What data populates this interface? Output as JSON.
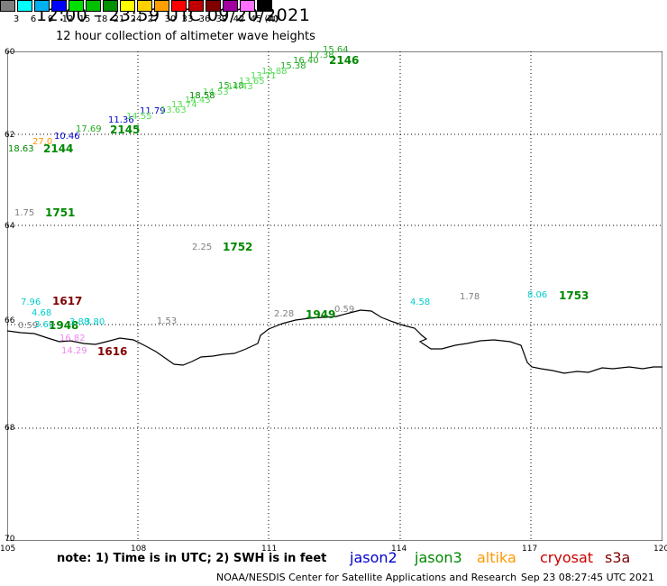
{
  "title": "12:00 – 23:59 UTC 09/20/2021",
  "subtitle": "12 hour collection of altimeter wave heights",
  "legend": {
    "unit": "(ft)",
    "colors": [
      "#7f7f7f",
      "#00ffff",
      "#00b0f0",
      "#0000ff",
      "#00e000",
      "#00c000",
      "#009000",
      "#ffff00",
      "#ffd000",
      "#ffa000",
      "#ff0000",
      "#c00000",
      "#800000",
      "#a000a0",
      "#ff70ff",
      "#000000"
    ],
    "labels": [
      "3",
      "6",
      "9",
      "12",
      "15",
      "18",
      "21",
      "24",
      "27",
      "30",
      "33",
      "36",
      "39",
      "42",
      "45",
      "70"
    ]
  },
  "axes": {
    "lat_labels": [
      "60",
      "62",
      "64",
      "66",
      "68",
      "70"
    ],
    "lon_labels": [
      "105",
      "108",
      "111",
      "114",
      "117",
      "120"
    ]
  },
  "measurements": [
    {
      "text": "15.64",
      "color": "#22a822"
    },
    {
      "text": "17.38",
      "color": "#22a822"
    },
    {
      "text": "16.40",
      "color": "#22a822"
    },
    {
      "text": "2146",
      "color": "#008800",
      "bold": true
    },
    {
      "text": "15.38",
      "color": "#22a822"
    },
    {
      "text": "13.88",
      "color": "#55dd55"
    },
    {
      "text": "13.71",
      "color": "#55dd55"
    },
    {
      "text": "13.65",
      "color": "#55dd55"
    },
    {
      "text": "14.43",
      "color": "#55dd55"
    },
    {
      "text": "15.18",
      "color": "#22a822"
    },
    {
      "text": "14.53",
      "color": "#55dd55"
    },
    {
      "text": "18.58",
      "color": "#008800"
    },
    {
      "text": "14.43",
      "color": "#55dd55"
    },
    {
      "text": "13.74",
      "color": "#55dd55"
    },
    {
      "text": "11.79",
      "color": "#0000cc"
    },
    {
      "text": "13.63",
      "color": "#55dd55"
    },
    {
      "text": "11.36",
      "color": "#0000cc"
    },
    {
      "text": "14.55",
      "color": "#55dd55"
    },
    {
      "text": "17.69",
      "color": "#22a822"
    },
    {
      "text": "2145",
      "color": "#008800",
      "bold": true
    },
    {
      "text": "10.46",
      "color": "#0000cc"
    },
    {
      "text": "27.0",
      "color": "#ff9900"
    },
    {
      "text": "18.63",
      "color": "#008800"
    },
    {
      "text": "2144",
      "color": "#008800",
      "bold": true
    },
    {
      "text": "1.75",
      "color": "#808080"
    },
    {
      "text": "1751",
      "color": "#008800",
      "bold": true
    },
    {
      "text": "2.25",
      "color": "#808080"
    },
    {
      "text": "1752",
      "color": "#008800",
      "bold": true
    },
    {
      "text": "7.96",
      "color": "#00cccc"
    },
    {
      "text": "1617",
      "color": "#800000",
      "bold": true
    },
    {
      "text": "4.68",
      "color": "#00cccc"
    },
    {
      "text": "0.59",
      "color": "#808080"
    },
    {
      "text": "3.60",
      "color": "#00cccc"
    },
    {
      "text": "1948",
      "color": "#008800",
      "bold": true
    },
    {
      "text": "3.88",
      "color": "#00cccc"
    },
    {
      "text": "3.80",
      "color": "#00cccc"
    },
    {
      "text": "1.53",
      "color": "#808080"
    },
    {
      "text": "16.82",
      "color": "#ee88ee"
    },
    {
      "text": "14.29",
      "color": "#ee88ee"
    },
    {
      "text": "1616",
      "color": "#800000",
      "bold": true
    },
    {
      "text": "2.28",
      "color": "#808080"
    },
    {
      "text": "1949",
      "color": "#008800",
      "bold": true
    },
    {
      "text": "0.59",
      "color": "#808080"
    },
    {
      "text": "4.58",
      "color": "#00cccc"
    },
    {
      "text": "1.78",
      "color": "#808080"
    },
    {
      "text": "8.06",
      "color": "#00cccc"
    },
    {
      "text": "1753",
      "color": "#008800",
      "bold": true
    }
  ],
  "note": "note: 1) Time is in UTC; 2) SWH is in feet",
  "satellites": [
    {
      "name": "jason2",
      "color": "#0000cc"
    },
    {
      "name": "jason3",
      "color": "#008800"
    },
    {
      "name": "altika",
      "color": "#ff9900"
    },
    {
      "name": "cryosat",
      "color": "#cc0000"
    },
    {
      "name": "s3a",
      "color": "#800000"
    }
  ],
  "credit": "NOAA/NESDIS Center for Satellite Applications and Research",
  "timestamp": "Sep 23 08:27:45 UTC 2021"
}
